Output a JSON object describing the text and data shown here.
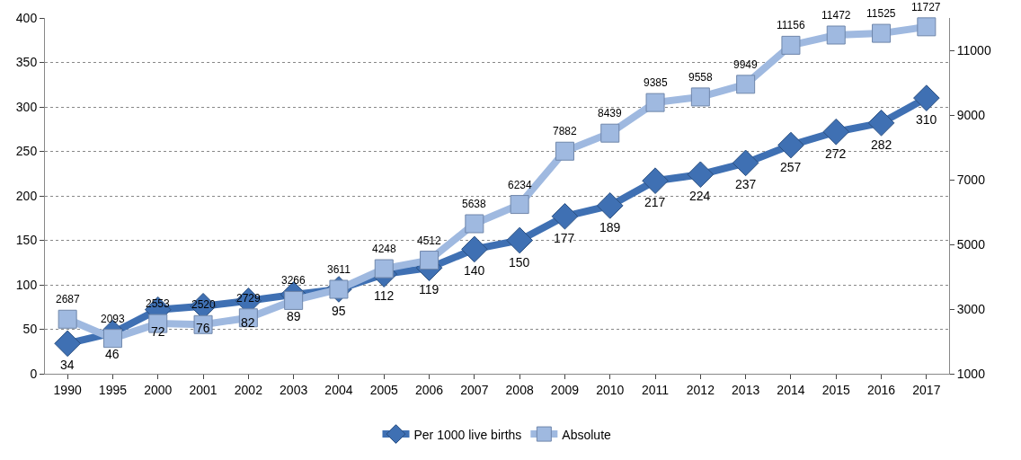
{
  "chart_data": {
    "type": "line",
    "categories": [
      "1990",
      "1995",
      "2000",
      "2001",
      "2002",
      "2003",
      "2004",
      "2005",
      "2006",
      "2007",
      "2008",
      "2009",
      "2010",
      "2011",
      "2012",
      "2013",
      "2014",
      "2015",
      "2016",
      "2017"
    ],
    "series": [
      {
        "name": "Per 1000 live births",
        "color": "#3f70b3",
        "marker": "diamond",
        "values": [
          34,
          46,
          72,
          76,
          82,
          89,
          95,
          112,
          119,
          140,
          150,
          177,
          189,
          217,
          224,
          237,
          257,
          272,
          282,
          310
        ]
      },
      {
        "name": "Absolute",
        "color": "#9fb9e0",
        "marker": "square",
        "axis": "y2",
        "values": [
          2687,
          2093,
          2553,
          2520,
          2729,
          3266,
          3611,
          4248,
          4512,
          5638,
          6234,
          7882,
          8439,
          9385,
          9558,
          9949,
          11156,
          11472,
          11525,
          11727
        ]
      }
    ],
    "ylim": [
      0,
      400
    ],
    "yticks": [
      0,
      50,
      100,
      150,
      200,
      250,
      300,
      350,
      400
    ],
    "y2lim": [
      1000,
      12000
    ],
    "y2ticks": [
      1000,
      3000,
      5000,
      7000,
      9000,
      11000
    ],
    "grid": "y",
    "legend": "bottom",
    "data_labels": true,
    "line_style": "solid"
  }
}
